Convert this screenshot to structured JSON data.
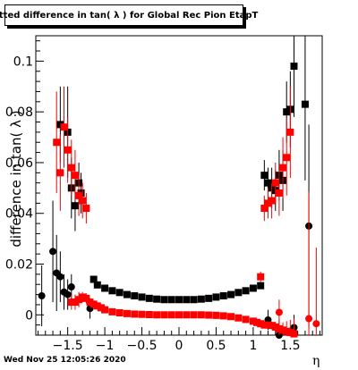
{
  "title": "Fitted difference in tan( λ ) for Global Rec Pion EtapT",
  "footer": "Wed Nov 25 12:05:26 2020",
  "chart_data": {
    "type": "scatter",
    "title": "Fitted difference in tan( λ ) for Global Rec Pion EtapT",
    "xlabel": "η",
    "ylabel": "difference in tan( λ )",
    "xlim": [
      -1.93,
      1.93
    ],
    "ylim": [
      -0.008,
      0.11
    ],
    "x_ticks": [
      -1.5,
      -1,
      -0.5,
      0,
      0.5,
      1,
      1.5
    ],
    "x_tick_labels": [
      "−1.5",
      "−1",
      "−0.5",
      "0",
      "0.5",
      "1",
      "1.5"
    ],
    "y_ticks": [
      0,
      0.02,
      0.04,
      0.06,
      0.08,
      0.1
    ],
    "y_tick_labels": [
      "0",
      "0.02",
      "0.04",
      "0.06",
      "0.08",
      "0.1"
    ],
    "grid": false,
    "legend": "none",
    "colors": {
      "black": "#000000",
      "red": "#ff0000"
    },
    "series": [
      {
        "color": "black",
        "points": [
          {
            "x": -1.85,
            "y": 0.0075,
            "e": 0.012,
            "m": "c"
          },
          {
            "x": -1.7,
            "y": 0.025,
            "e": 0.02,
            "m": "c"
          },
          {
            "x": -1.65,
            "y": 0.0165,
            "e": 0.015,
            "m": "c"
          },
          {
            "x": -1.6,
            "y": 0.015,
            "e": 0.01,
            "m": "c"
          },
          {
            "x": -1.55,
            "y": 0.009,
            "e": 0.007,
            "m": "c"
          },
          {
            "x": -1.5,
            "y": 0.008,
            "e": 0.006,
            "m": "c"
          },
          {
            "x": -1.45,
            "y": 0.011,
            "e": 0.005,
            "m": "c"
          },
          {
            "x": -1.2,
            "y": 0.0025,
            "e": 0.004,
            "m": "c"
          },
          {
            "x": -1.6,
            "y": 0.075,
            "e": 0.015,
            "m": "s"
          },
          {
            "x": -1.5,
            "y": 0.072,
            "e": 0.018,
            "m": "s"
          },
          {
            "x": -1.45,
            "y": 0.05,
            "e": 0.012,
            "m": "s"
          },
          {
            "x": -1.4,
            "y": 0.043,
            "e": 0.01,
            "m": "s"
          },
          {
            "x": -1.35,
            "y": 0.052,
            "e": 0.008,
            "m": "s"
          },
          {
            "x": -1.32,
            "y": 0.048,
            "e": 0.008,
            "m": "s"
          },
          {
            "x": -1.15,
            "y": 0.014,
            "e": 0.001,
            "m": "s"
          },
          {
            "x": -1.1,
            "y": 0.0118,
            "e": 0.0008,
            "m": "s"
          },
          {
            "x": -1.0,
            "y": 0.0105,
            "e": 0.0006,
            "m": "s"
          },
          {
            "x": -0.9,
            "y": 0.0095,
            "e": 0.0005,
            "m": "s"
          },
          {
            "x": -0.8,
            "y": 0.0088,
            "e": 0.0005,
            "m": "s"
          },
          {
            "x": -0.7,
            "y": 0.008,
            "e": 0.0005,
            "m": "s"
          },
          {
            "x": -0.6,
            "y": 0.0075,
            "e": 0.0005,
            "m": "s"
          },
          {
            "x": -0.5,
            "y": 0.007,
            "e": 0.0005,
            "m": "s"
          },
          {
            "x": -0.4,
            "y": 0.0065,
            "e": 0.0004,
            "m": "s"
          },
          {
            "x": -0.3,
            "y": 0.0062,
            "e": 0.0004,
            "m": "s"
          },
          {
            "x": -0.2,
            "y": 0.006,
            "e": 0.0004,
            "m": "s"
          },
          {
            "x": -0.1,
            "y": 0.006,
            "e": 0.0004,
            "m": "s"
          },
          {
            "x": 0.0,
            "y": 0.006,
            "e": 0.0004,
            "m": "s"
          },
          {
            "x": 0.1,
            "y": 0.006,
            "e": 0.0004,
            "m": "s"
          },
          {
            "x": 0.2,
            "y": 0.006,
            "e": 0.0004,
            "m": "s"
          },
          {
            "x": 0.3,
            "y": 0.0062,
            "e": 0.0004,
            "m": "s"
          },
          {
            "x": 0.4,
            "y": 0.0065,
            "e": 0.0004,
            "m": "s"
          },
          {
            "x": 0.5,
            "y": 0.007,
            "e": 0.0005,
            "m": "s"
          },
          {
            "x": 0.6,
            "y": 0.0075,
            "e": 0.0005,
            "m": "s"
          },
          {
            "x": 0.7,
            "y": 0.008,
            "e": 0.0005,
            "m": "s"
          },
          {
            "x": 0.8,
            "y": 0.0088,
            "e": 0.0005,
            "m": "s"
          },
          {
            "x": 0.9,
            "y": 0.0095,
            "e": 0.0005,
            "m": "s"
          },
          {
            "x": 1.0,
            "y": 0.0105,
            "e": 0.0006,
            "m": "s"
          },
          {
            "x": 1.1,
            "y": 0.0115,
            "e": 0.0008,
            "m": "s"
          },
          {
            "x": 1.15,
            "y": 0.055,
            "e": 0.006,
            "m": "s"
          },
          {
            "x": 1.2,
            "y": 0.052,
            "e": 0.006,
            "m": "s"
          },
          {
            "x": 1.25,
            "y": 0.05,
            "e": 0.008,
            "m": "s"
          },
          {
            "x": 1.3,
            "y": 0.049,
            "e": 0.008,
            "m": "s"
          },
          {
            "x": 1.35,
            "y": 0.055,
            "e": 0.01,
            "m": "s"
          },
          {
            "x": 1.4,
            "y": 0.053,
            "e": 0.012,
            "m": "s"
          },
          {
            "x": 1.45,
            "y": 0.08,
            "e": 0.012,
            "m": "s"
          },
          {
            "x": 1.5,
            "y": 0.081,
            "e": 0.015,
            "m": "s"
          },
          {
            "x": 1.55,
            "y": 0.098,
            "e": 0.02,
            "m": "s"
          },
          {
            "x": 1.7,
            "y": 0.083,
            "e": 0.03,
            "m": "s"
          },
          {
            "x": 1.2,
            "y": -0.002,
            "e": 0.004,
            "m": "c"
          },
          {
            "x": 1.35,
            "y": -0.008,
            "e": 0.006,
            "m": "c"
          },
          {
            "x": 1.55,
            "y": -0.005,
            "e": 0.005,
            "m": "c"
          },
          {
            "x": 1.75,
            "y": 0.035,
            "e": 0.04,
            "m": "c"
          }
        ]
      },
      {
        "color": "red",
        "points": [
          {
            "x": -1.65,
            "y": 0.068,
            "e": 0.02,
            "m": "s"
          },
          {
            "x": -1.6,
            "y": 0.056,
            "e": 0.015,
            "m": "s"
          },
          {
            "x": -1.55,
            "y": 0.074,
            "e": 0.016,
            "m": "s"
          },
          {
            "x": -1.5,
            "y": 0.065,
            "e": 0.013,
            "m": "s"
          },
          {
            "x": -1.45,
            "y": 0.058,
            "e": 0.011,
            "m": "s"
          },
          {
            "x": -1.4,
            "y": 0.055,
            "e": 0.01,
            "m": "s"
          },
          {
            "x": -1.35,
            "y": 0.047,
            "e": 0.008,
            "m": "s"
          },
          {
            "x": -1.3,
            "y": 0.045,
            "e": 0.007,
            "m": "s"
          },
          {
            "x": -1.25,
            "y": 0.042,
            "e": 0.006,
            "m": "s"
          },
          {
            "x": -1.45,
            "y": 0.005,
            "e": 0.003,
            "m": "s"
          },
          {
            "x": -1.4,
            "y": 0.005,
            "e": 0.003,
            "m": "s"
          },
          {
            "x": -1.35,
            "y": 0.006,
            "e": 0.003,
            "m": "s"
          },
          {
            "x": -1.3,
            "y": 0.007,
            "e": 0.002,
            "m": "s"
          },
          {
            "x": -1.25,
            "y": 0.0065,
            "e": 0.002,
            "m": "s"
          },
          {
            "x": -1.2,
            "y": 0.005,
            "e": 0.001,
            "m": "s"
          },
          {
            "x": -1.15,
            "y": 0.0042,
            "e": 0.0008,
            "m": "s"
          },
          {
            "x": -1.1,
            "y": 0.0035,
            "e": 0.0006,
            "m": "s"
          },
          {
            "x": -1.05,
            "y": 0.0028,
            "e": 0.0005,
            "m": "s"
          },
          {
            "x": -1.0,
            "y": 0.002,
            "e": 0.0005,
            "m": "s"
          },
          {
            "x": -0.9,
            "y": 0.0012,
            "e": 0.0004,
            "m": "s"
          },
          {
            "x": -0.8,
            "y": 0.0008,
            "e": 0.0004,
            "m": "s"
          },
          {
            "x": -0.7,
            "y": 0.0005,
            "e": 0.0004,
            "m": "s"
          },
          {
            "x": -0.6,
            "y": 0.0003,
            "e": 0.0003,
            "m": "s"
          },
          {
            "x": -0.5,
            "y": 0.0002,
            "e": 0.0003,
            "m": "s"
          },
          {
            "x": -0.4,
            "y": 0.0001,
            "e": 0.0003,
            "m": "s"
          },
          {
            "x": -0.3,
            "y": 0.0,
            "e": 0.0003,
            "m": "s"
          },
          {
            "x": -0.2,
            "y": 0.0,
            "e": 0.0003,
            "m": "s"
          },
          {
            "x": -0.1,
            "y": 0.0,
            "e": 0.0003,
            "m": "s"
          },
          {
            "x": 0.0,
            "y": 0.0,
            "e": 0.0003,
            "m": "s"
          },
          {
            "x": 0.1,
            "y": 0.0,
            "e": 0.0003,
            "m": "s"
          },
          {
            "x": 0.2,
            "y": 0.0,
            "e": 0.0003,
            "m": "s"
          },
          {
            "x": 0.3,
            "y": 0.0,
            "e": 0.0003,
            "m": "s"
          },
          {
            "x": 0.4,
            "y": -0.0001,
            "e": 0.0003,
            "m": "s"
          },
          {
            "x": 0.5,
            "y": -0.0002,
            "e": 0.0003,
            "m": "s"
          },
          {
            "x": 0.6,
            "y": -0.0004,
            "e": 0.0003,
            "m": "s"
          },
          {
            "x": 0.7,
            "y": -0.0007,
            "e": 0.0004,
            "m": "s"
          },
          {
            "x": 0.8,
            "y": -0.0012,
            "e": 0.0004,
            "m": "s"
          },
          {
            "x": 0.9,
            "y": -0.0018,
            "e": 0.0005,
            "m": "s"
          },
          {
            "x": 1.0,
            "y": -0.0025,
            "e": 0.0005,
            "m": "s"
          },
          {
            "x": 1.05,
            "y": -0.003,
            "e": 0.0006,
            "m": "s"
          },
          {
            "x": 1.1,
            "y": -0.0035,
            "e": 0.0008,
            "m": "s"
          },
          {
            "x": 1.15,
            "y": -0.004,
            "e": 0.001,
            "m": "s"
          },
          {
            "x": 1.2,
            "y": -0.004,
            "e": 0.001,
            "m": "s"
          },
          {
            "x": 1.25,
            "y": -0.0042,
            "e": 0.0015,
            "m": "s"
          },
          {
            "x": 1.3,
            "y": -0.0048,
            "e": 0.002,
            "m": "s"
          },
          {
            "x": 1.35,
            "y": -0.0055,
            "e": 0.003,
            "m": "s"
          },
          {
            "x": 1.4,
            "y": -0.006,
            "e": 0.003,
            "m": "s"
          },
          {
            "x": 1.45,
            "y": -0.0065,
            "e": 0.004,
            "m": "s"
          },
          {
            "x": 1.5,
            "y": -0.007,
            "e": 0.005,
            "m": "s"
          },
          {
            "x": 1.55,
            "y": -0.0075,
            "e": 0.006,
            "m": "s"
          },
          {
            "x": 1.1,
            "y": 0.015,
            "e": 0.002,
            "m": "s"
          },
          {
            "x": 1.15,
            "y": 0.042,
            "e": 0.005,
            "m": "s"
          },
          {
            "x": 1.2,
            "y": 0.044,
            "e": 0.006,
            "m": "s"
          },
          {
            "x": 1.25,
            "y": 0.045,
            "e": 0.007,
            "m": "s"
          },
          {
            "x": 1.3,
            "y": 0.052,
            "e": 0.008,
            "m": "s"
          },
          {
            "x": 1.35,
            "y": 0.048,
            "e": 0.009,
            "m": "s"
          },
          {
            "x": 1.4,
            "y": 0.058,
            "e": 0.012,
            "m": "s"
          },
          {
            "x": 1.45,
            "y": 0.062,
            "e": 0.015,
            "m": "s"
          },
          {
            "x": 1.5,
            "y": 0.072,
            "e": 0.018,
            "m": "s"
          },
          {
            "x": 1.35,
            "y": 0.001,
            "e": 0.005,
            "m": "c"
          },
          {
            "x": 1.75,
            "y": -0.0015,
            "e": 0.05,
            "m": "c"
          },
          {
            "x": 1.85,
            "y": -0.0035,
            "e": 0.03,
            "m": "c"
          }
        ]
      }
    ]
  }
}
